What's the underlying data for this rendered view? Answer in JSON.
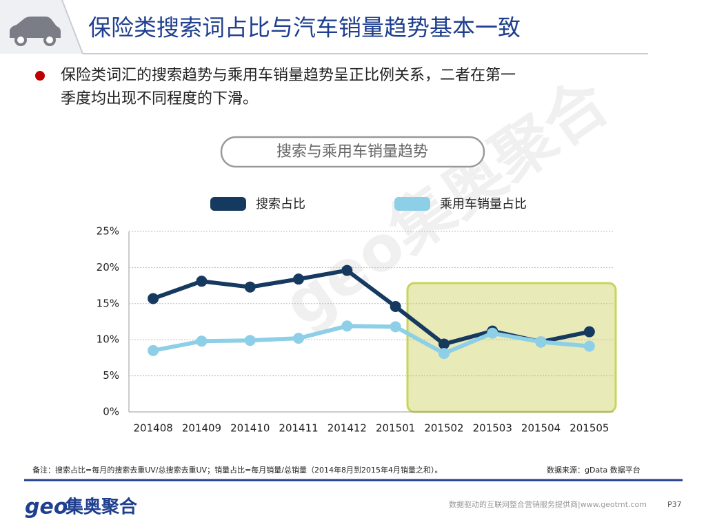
{
  "header": {
    "title": "保险类搜索词占比与汽车销量趋势基本一致"
  },
  "bullet": {
    "lines": [
      "保险类词汇的搜索趋势与乘用车销量趋势呈正比例关系，二者在第一",
      "季度均出现不同程度的下滑。"
    ]
  },
  "watermark": "geo集奥聚合",
  "chart_data": {
    "type": "line",
    "title": "搜索与乘用车销量趋势",
    "categories": [
      "201408",
      "201409",
      "201410",
      "201411",
      "201412",
      "201501",
      "201502",
      "201503",
      "201504",
      "201505"
    ],
    "series": [
      {
        "name": "搜索占比",
        "color": "#163a5f",
        "values": [
          15.7,
          18.1,
          17.3,
          18.4,
          19.6,
          14.6,
          9.4,
          11.2,
          9.7,
          11.1
        ]
      },
      {
        "name": "乘用车销量占比",
        "color": "#8ecfe8",
        "values": [
          8.5,
          9.8,
          9.9,
          10.2,
          11.9,
          11.8,
          8.1,
          10.9,
          9.7,
          9.1
        ]
      }
    ],
    "ylim": [
      0,
      25
    ],
    "yticks": [
      {
        "value": 0,
        "label": "0%"
      },
      {
        "value": 5,
        "label": "5%"
      },
      {
        "value": 10,
        "label": "10%"
      },
      {
        "value": 15,
        "label": "15%"
      },
      {
        "value": 20,
        "label": "20%"
      },
      {
        "value": 25,
        "label": "25%"
      }
    ],
    "grid": true,
    "legend": "top"
  },
  "footer": {
    "note": "备注：搜索占比=每月的搜索去重UV/总搜索去重UV；销量占比=每月销量/总销量（2014年8月到2015年4月销量之和）。",
    "source": "数据来源：gData  数据平台",
    "logo_geo": "geo",
    "logo_name": "集奥聚合",
    "tagline": "数据驱动的互联网整合营销服务提供商|www.geotmt.com",
    "page": "P37"
  }
}
